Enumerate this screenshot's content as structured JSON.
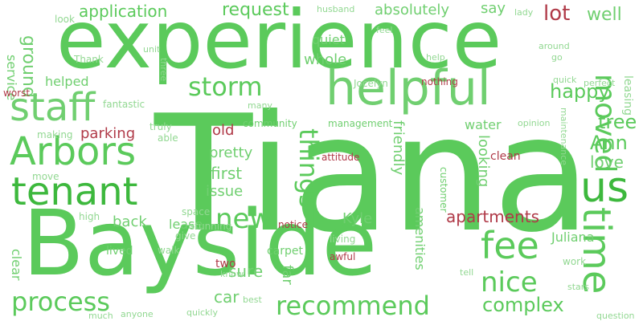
{
  "colors": {
    "positive_bright": "#5bca5b",
    "positive_mid": "#70cf70",
    "positive_light": "#92d892",
    "positive_strong": "#3db83d",
    "negative": "#b03a48",
    "negative_light": "#c56a72"
  },
  "words": [
    {
      "text": "Tiana",
      "color": "positive_bright"
    },
    {
      "text": "experience",
      "color": "positive_bright"
    },
    {
      "text": "Bayside",
      "color": "positive_bright"
    },
    {
      "text": "helpful",
      "color": "positive_mid"
    },
    {
      "text": "staff",
      "color": "positive_mid"
    },
    {
      "text": "tenant",
      "color": "positive_strong"
    },
    {
      "text": "Arbors",
      "color": "positive_bright"
    },
    {
      "text": "us",
      "color": "positive_strong"
    },
    {
      "text": "time",
      "color": "positive_bright"
    },
    {
      "text": "recommend",
      "color": "positive_bright"
    },
    {
      "text": "fee",
      "color": "positive_bright"
    },
    {
      "text": "process",
      "color": "positive_bright"
    },
    {
      "text": "nice",
      "color": "positive_bright"
    },
    {
      "text": "new",
      "color": "positive_bright"
    },
    {
      "text": "things",
      "color": "positive_bright"
    },
    {
      "text": "storm",
      "color": "positive_bright"
    },
    {
      "text": "moved",
      "color": "positive_bright"
    },
    {
      "text": "complex",
      "color": "positive_bright"
    },
    {
      "text": "application",
      "color": "positive_bright"
    },
    {
      "text": "request",
      "color": "positive_bright"
    },
    {
      "text": "absolutely",
      "color": "positive_mid"
    },
    {
      "text": "lot",
      "color": "negative"
    },
    {
      "text": "well",
      "color": "positive_mid"
    },
    {
      "text": "say",
      "color": "positive_mid"
    },
    {
      "text": "happy",
      "color": "positive_bright"
    },
    {
      "text": "tree",
      "color": "positive_bright"
    },
    {
      "text": "Ann",
      "color": "positive_bright"
    },
    {
      "text": "love",
      "color": "positive_mid"
    },
    {
      "text": "apartments",
      "color": "negative"
    },
    {
      "text": "ground",
      "color": "positive_mid"
    },
    {
      "text": "service",
      "color": "positive_mid"
    },
    {
      "text": "quiet",
      "color": "positive_mid"
    },
    {
      "text": "whole",
      "color": "positive_mid"
    },
    {
      "text": "helped",
      "color": "positive_mid"
    },
    {
      "text": "parking",
      "color": "negative"
    },
    {
      "text": "old",
      "color": "negative"
    },
    {
      "text": "pretty",
      "color": "positive_mid"
    },
    {
      "text": "first",
      "color": "positive_mid"
    },
    {
      "text": "issue",
      "color": "positive_mid"
    },
    {
      "text": "back",
      "color": "positive_mid"
    },
    {
      "text": "lease",
      "color": "positive_mid"
    },
    {
      "text": "Kyle",
      "color": "positive_mid"
    },
    {
      "text": "water",
      "color": "positive_mid"
    },
    {
      "text": "friendly",
      "color": "positive_mid"
    },
    {
      "text": "looking",
      "color": "positive_mid"
    },
    {
      "text": "far",
      "color": "positive_mid"
    },
    {
      "text": "sure",
      "color": "positive_mid"
    },
    {
      "text": "car",
      "color": "positive_mid"
    },
    {
      "text": "Juliana",
      "color": "positive_mid"
    },
    {
      "text": "amenities",
      "color": "positive_mid"
    },
    {
      "text": "clean",
      "color": "negative"
    },
    {
      "text": "leasing",
      "color": "positive_light"
    },
    {
      "text": "clear",
      "color": "positive_mid"
    },
    {
      "text": "lived",
      "color": "positive_mid"
    },
    {
      "text": "two",
      "color": "negative"
    },
    {
      "text": "carpet",
      "color": "positive_mid"
    },
    {
      "text": "awful",
      "color": "negative"
    },
    {
      "text": "work",
      "color": "positive_light"
    },
    {
      "text": "community",
      "color": "positive_mid"
    },
    {
      "text": "management",
      "color": "positive_mid"
    },
    {
      "text": "customer",
      "color": "positive_mid"
    },
    {
      "text": "maintenance",
      "color": "positive_light"
    },
    {
      "text": "fantastic",
      "color": "positive_light"
    },
    {
      "text": "truly",
      "color": "positive_light"
    },
    {
      "text": "able",
      "color": "positive_light"
    },
    {
      "text": "making",
      "color": "positive_light"
    },
    {
      "text": "move",
      "color": "positive_light"
    },
    {
      "text": "high",
      "color": "positive_light"
    },
    {
      "text": "space",
      "color": "positive_light"
    },
    {
      "text": "walk",
      "color": "positive_light"
    },
    {
      "text": "stunning",
      "color": "positive_light"
    },
    {
      "text": "give",
      "color": "positive_light"
    },
    {
      "text": "notice",
      "color": "negative"
    },
    {
      "text": "living",
      "color": "positive_light"
    },
    {
      "text": "attitude",
      "color": "negative"
    },
    {
      "text": "nothing",
      "color": "negative"
    },
    {
      "text": "worst",
      "color": "negative"
    },
    {
      "text": "Jocelyn",
      "color": "positive_light"
    },
    {
      "text": "opinion",
      "color": "positive_light"
    },
    {
      "text": "quick",
      "color": "positive_light"
    },
    {
      "text": "perfect",
      "color": "positive_light"
    },
    {
      "text": "help",
      "color": "positive_light"
    },
    {
      "text": "around",
      "color": "positive_light"
    },
    {
      "text": "go",
      "color": "positive_light"
    },
    {
      "text": "Thank",
      "color": "positive_light"
    },
    {
      "text": "unit",
      "color": "positive_light"
    },
    {
      "text": "three",
      "color": "positive_light"
    },
    {
      "text": "look",
      "color": "positive_light"
    },
    {
      "text": "husband",
      "color": "positive_light"
    },
    {
      "text": "lady",
      "color": "positive_light"
    },
    {
      "text": "feel",
      "color": "positive_light"
    },
    {
      "text": "many",
      "color": "positive_light"
    },
    {
      "text": "know",
      "color": "positive_light"
    },
    {
      "text": "best",
      "color": "positive_light"
    },
    {
      "text": "much",
      "color": "positive_light"
    },
    {
      "text": "anyone",
      "color": "positive_light"
    },
    {
      "text": "quickly",
      "color": "positive_light"
    },
    {
      "text": "tell",
      "color": "positive_light"
    },
    {
      "text": "stars",
      "color": "positive_light"
    },
    {
      "text": "question",
      "color": "positive_light"
    }
  ]
}
